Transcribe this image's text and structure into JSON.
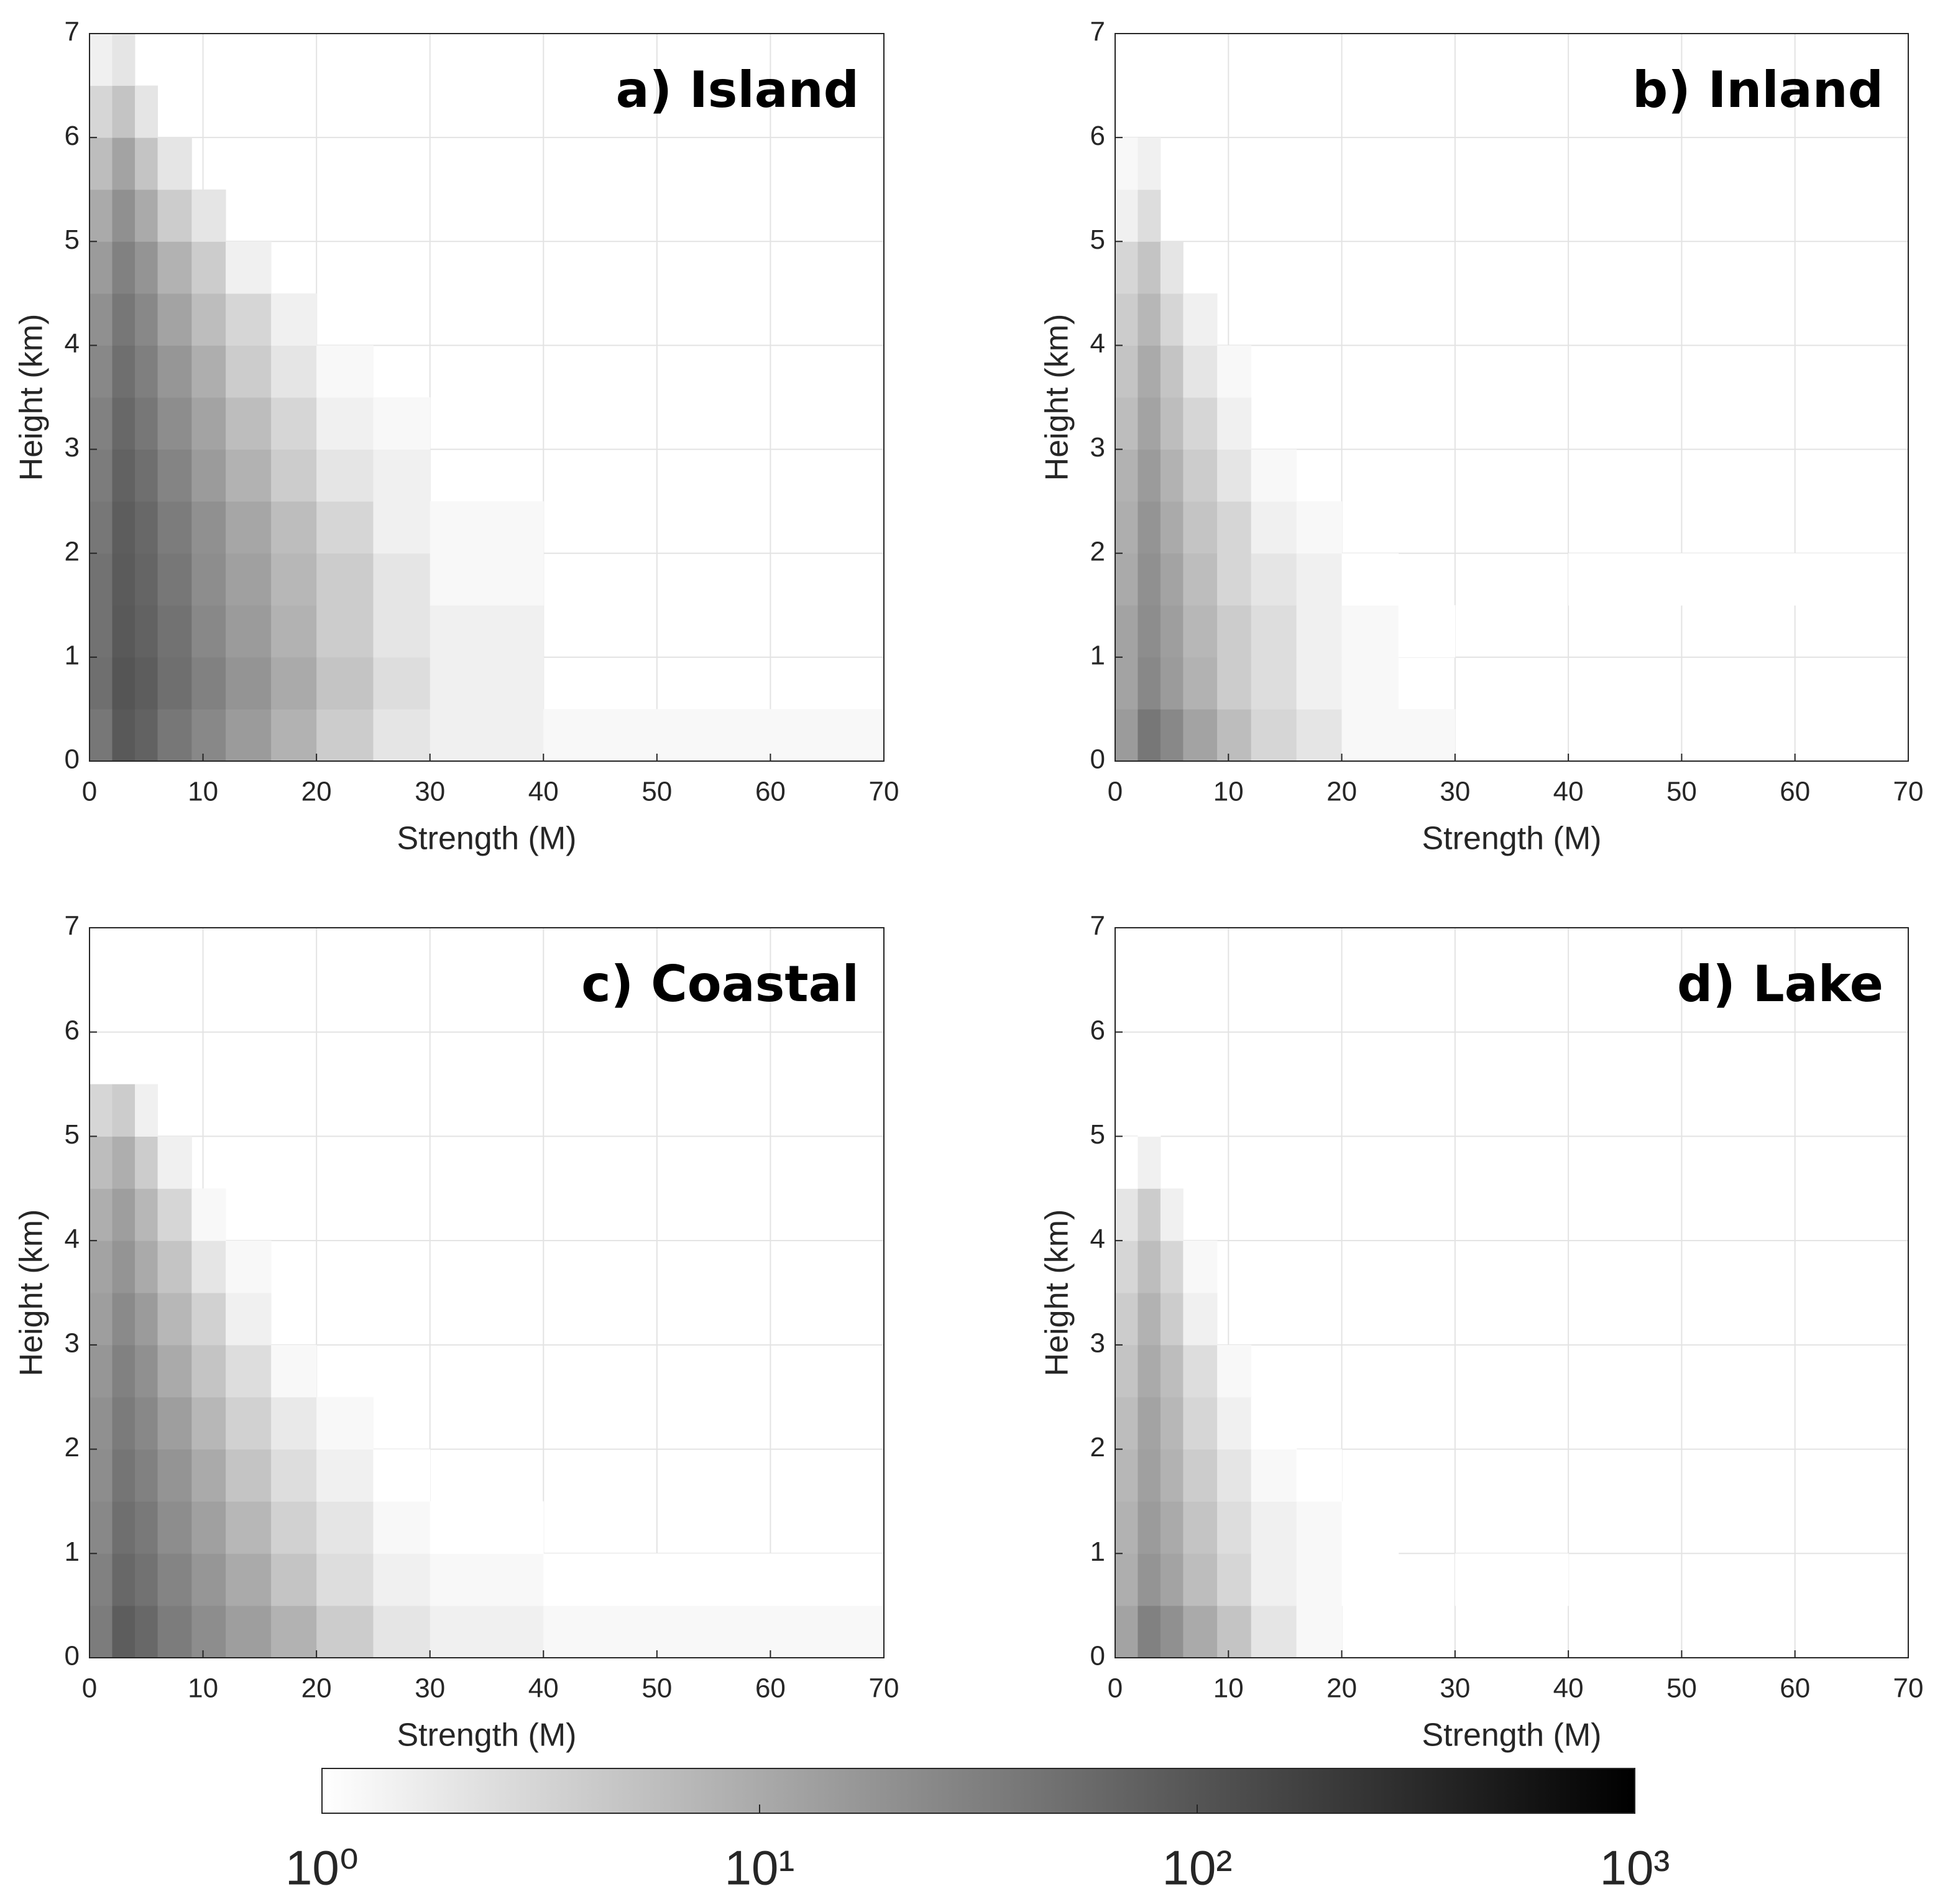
{
  "chart_data": [
    {
      "type": "heatmap",
      "title": "a) Island",
      "x_label": "Strength (M)",
      "y_label": "Height (km)",
      "xbins": [
        0,
        2,
        4,
        6,
        9,
        12,
        16,
        20,
        25,
        30,
        40,
        70
      ],
      "ybins": [
        0,
        0.5,
        1,
        1.5,
        2,
        2.5,
        3,
        3.5,
        4,
        4.5,
        5,
        5.5,
        6,
        6.5,
        7
      ],
      "values": [
        [
          40,
          90,
          70,
          40,
          25,
          15,
          8,
          4,
          2,
          1.5,
          1.2
        ],
        [
          50,
          100,
          80,
          50,
          30,
          18,
          10,
          5,
          2.5,
          1.5,
          null
        ],
        [
          45,
          90,
          70,
          45,
          25,
          15,
          8,
          4,
          2,
          1.5,
          null
        ],
        [
          45,
          85,
          65,
          40,
          22,
          13,
          7,
          4,
          2,
          1.2,
          null
        ],
        [
          40,
          80,
          60,
          35,
          20,
          11,
          6,
          3,
          1.5,
          1.2,
          null
        ],
        [
          35,
          70,
          50,
          28,
          15,
          8,
          4,
          2,
          1.5,
          null,
          null
        ],
        [
          30,
          60,
          40,
          22,
          12,
          6,
          3,
          1.5,
          1.2,
          null,
          null
        ],
        [
          25,
          50,
          32,
          17,
          9,
          4,
          2,
          1.2,
          null,
          null,
          null
        ],
        [
          20,
          40,
          25,
          12,
          6,
          3,
          1.5,
          null,
          null,
          null,
          null
        ],
        [
          15,
          30,
          18,
          8,
          4,
          1.5,
          null,
          null,
          null,
          null,
          null
        ],
        [
          10,
          20,
          10,
          4,
          2,
          null,
          null,
          null,
          null,
          null,
          null
        ],
        [
          6,
          12,
          5,
          2,
          null,
          null,
          null,
          null,
          null,
          null,
          null
        ],
        [
          3,
          5,
          2,
          null,
          null,
          null,
          null,
          null,
          null,
          null,
          null
        ],
        [
          1.5,
          2,
          null,
          null,
          null,
          null,
          null,
          null,
          null,
          null,
          null
        ]
      ],
      "xlim": [
        0,
        70
      ],
      "ylim": [
        0,
        7
      ],
      "xticks": [
        0,
        10,
        20,
        30,
        40,
        50,
        60,
        70
      ],
      "yticks": [
        0,
        1,
        2,
        3,
        4,
        5,
        6,
        7
      ],
      "grid": true
    },
    {
      "type": "heatmap",
      "title": "b) Inland",
      "x_label": "Strength (M)",
      "y_label": "Height (km)",
      "xbins": [
        0,
        2,
        4,
        6,
        9,
        12,
        16,
        20,
        25,
        30,
        40,
        70
      ],
      "ybins": [
        0,
        0.5,
        1,
        1.5,
        2,
        2.5,
        3,
        3.5,
        4,
        4.5,
        5,
        5.5,
        6,
        6.5,
        7
      ],
      "values": [
        [
          15,
          40,
          25,
          12,
          6,
          3,
          2,
          1.2,
          1.2,
          null,
          null
        ],
        [
          12,
          25,
          15,
          8,
          4,
          2.5,
          1.5,
          1.2,
          null,
          null,
          null
        ],
        [
          12,
          22,
          14,
          7,
          4,
          2.5,
          1.5,
          1.2,
          1,
          null,
          null
        ],
        [
          10,
          20,
          12,
          6,
          3,
          2,
          1.5,
          1,
          null,
          null,
          1
        ],
        [
          9,
          18,
          10,
          5,
          3,
          1.5,
          1.2,
          null,
          null,
          null,
          null
        ],
        [
          8,
          15,
          8,
          4,
          2,
          1.2,
          null,
          null,
          null,
          null,
          null
        ],
        [
          6,
          12,
          6,
          3,
          1.5,
          null,
          null,
          null,
          null,
          null,
          null
        ],
        [
          5,
          10,
          5,
          2,
          1.2,
          null,
          null,
          null,
          null,
          null,
          null
        ],
        [
          4,
          7,
          3,
          1.5,
          null,
          null,
          null,
          null,
          null,
          null,
          null
        ],
        [
          3,
          5,
          2,
          null,
          null,
          null,
          null,
          null,
          null,
          null,
          null
        ],
        [
          1.5,
          2.5,
          null,
          null,
          null,
          null,
          null,
          null,
          null,
          null,
          null
        ],
        [
          1.2,
          1.5,
          null,
          null,
          null,
          null,
          null,
          null,
          null,
          null,
          null
        ],
        [
          null,
          null,
          null,
          null,
          null,
          null,
          null,
          null,
          null,
          null,
          null
        ],
        [
          null,
          null,
          null,
          null,
          null,
          null,
          null,
          null,
          null,
          null,
          null
        ]
      ],
      "xlim": [
        0,
        70
      ],
      "ylim": [
        0,
        7
      ],
      "xticks": [
        0,
        10,
        20,
        30,
        40,
        50,
        60,
        70
      ],
      "yticks": [
        0,
        1,
        2,
        3,
        4,
        5,
        6,
        7
      ],
      "grid": true
    },
    {
      "type": "heatmap",
      "title": "c) Coastal",
      "x_label": "Strength (M)",
      "y_label": "Height (km)",
      "xbins": [
        0,
        2,
        4,
        6,
        9,
        12,
        16,
        20,
        25,
        30,
        40,
        70
      ],
      "ybins": [
        0,
        0.5,
        1,
        1.5,
        2,
        2.5,
        3,
        3.5,
        4,
        4.5,
        5,
        5.5,
        6,
        6.5,
        7
      ],
      "values": [
        [
          35,
          80,
          60,
          35,
          22,
          14,
          8,
          4,
          2,
          1.5,
          1.2
        ],
        [
          30,
          60,
          45,
          28,
          17,
          10,
          5,
          2.5,
          1.5,
          1.2,
          1
        ],
        [
          25,
          50,
          38,
          22,
          13,
          7,
          3.5,
          2,
          1.2,
          1,
          null
        ],
        [
          22,
          42,
          30,
          18,
          10,
          5,
          2.5,
          1.5,
          1,
          null,
          null
        ],
        [
          20,
          36,
          25,
          14,
          7,
          3.5,
          1.8,
          1.2,
          null,
          null,
          null
        ],
        [
          17,
          30,
          20,
          10,
          5,
          2.5,
          1.2,
          null,
          null,
          null,
          null
        ],
        [
          14,
          24,
          15,
          7,
          3.5,
          1.5,
          null,
          null,
          null,
          null,
          null
        ],
        [
          12,
          18,
          10,
          5,
          2,
          1.2,
          null,
          null,
          null,
          null,
          null
        ],
        [
          9,
          14,
          7,
          3,
          1.2,
          null,
          null,
          null,
          null,
          null,
          null
        ],
        [
          6,
          9,
          4,
          1.5,
          null,
          null,
          null,
          null,
          null,
          null,
          null
        ],
        [
          3,
          4,
          1.5,
          null,
          null,
          null,
          null,
          null,
          null,
          null,
          null
        ],
        [
          null,
          null,
          null,
          null,
          null,
          null,
          null,
          null,
          null,
          null,
          null
        ],
        [
          null,
          null,
          null,
          null,
          null,
          null,
          null,
          null,
          null,
          null,
          null
        ],
        [
          null,
          null,
          null,
          null,
          null,
          null,
          null,
          null,
          null,
          null,
          null
        ]
      ],
      "xlim": [
        0,
        70
      ],
      "ylim": [
        0,
        7
      ],
      "xticks": [
        0,
        10,
        20,
        30,
        40,
        50,
        60,
        70
      ],
      "yticks": [
        0,
        1,
        2,
        3,
        4,
        5,
        6,
        7
      ],
      "grid": true
    },
    {
      "type": "heatmap",
      "title": "d) Lake",
      "x_label": "Strength (M)",
      "y_label": "Height (km)",
      "xbins": [
        0,
        2,
        4,
        6,
        9,
        12,
        16,
        20,
        25,
        30,
        40,
        70
      ],
      "ybins": [
        0,
        0.5,
        1,
        1.5,
        2,
        2.5,
        3,
        3.5,
        4,
        4.5,
        5,
        5.5,
        6,
        6.5,
        7
      ],
      "values": [
        [
          12,
          30,
          20,
          10,
          5,
          2,
          1.2,
          null,
          null,
          null,
          null
        ],
        [
          9,
          18,
          12,
          6,
          3,
          1.5,
          1.2,
          1,
          null,
          1,
          null
        ],
        [
          8,
          15,
          10,
          5,
          2.5,
          1.5,
          1.2,
          1,
          null,
          null,
          null
        ],
        [
          7,
          13,
          8,
          4,
          2,
          1.2,
          1,
          null,
          null,
          null,
          null
        ],
        [
          6,
          12,
          7,
          3,
          1.5,
          1,
          null,
          null,
          null,
          null,
          null
        ],
        [
          5,
          10,
          6,
          2.5,
          1.2,
          null,
          null,
          null,
          null,
          null,
          null
        ],
        [
          4,
          8,
          4,
          1.5,
          null,
          null,
          null,
          null,
          null,
          null,
          null
        ],
        [
          3,
          6,
          3,
          1.2,
          null,
          null,
          null,
          null,
          null,
          null,
          null
        ],
        [
          2,
          4,
          1.5,
          null,
          null,
          null,
          null,
          null,
          null,
          null,
          null
        ],
        [
          1,
          1.5,
          null,
          null,
          null,
          null,
          null,
          null,
          null,
          null,
          null
        ],
        [
          null,
          1,
          null,
          null,
          null,
          null,
          null,
          null,
          null,
          null,
          null
        ],
        [
          null,
          null,
          null,
          null,
          null,
          null,
          null,
          null,
          null,
          null,
          null
        ],
        [
          null,
          null,
          null,
          null,
          null,
          null,
          null,
          null,
          null,
          null,
          null
        ],
        [
          null,
          null,
          null,
          null,
          null,
          null,
          null,
          null,
          null,
          null,
          null
        ]
      ],
      "xlim": [
        0,
        70
      ],
      "ylim": [
        0,
        7
      ],
      "xticks": [
        0,
        10,
        20,
        30,
        40,
        50,
        60,
        70
      ],
      "yticks": [
        0,
        1,
        2,
        3,
        4,
        5,
        6,
        7
      ],
      "grid": true
    }
  ],
  "colorbar": {
    "scale": "log",
    "lim": [
      1,
      1000
    ],
    "colors": [
      "#ffffff",
      "#000000"
    ],
    "ticks": [
      {
        "value": 1,
        "label": "10⁰"
      },
      {
        "value": 10,
        "label": "10¹"
      },
      {
        "value": 100,
        "label": "10²"
      },
      {
        "value": 1000,
        "label": "10³"
      }
    ]
  }
}
